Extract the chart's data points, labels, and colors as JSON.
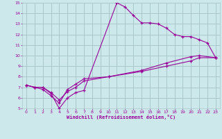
{
  "xlabel": "Windchill (Refroidissement éolien,°C)",
  "xlim": [
    -0.5,
    23.5
  ],
  "ylim": [
    5,
    15
  ],
  "xticks": [
    0,
    1,
    2,
    3,
    4,
    5,
    6,
    7,
    8,
    9,
    10,
    11,
    12,
    13,
    14,
    15,
    16,
    17,
    18,
    19,
    20,
    21,
    22,
    23
  ],
  "yticks": [
    5,
    6,
    7,
    8,
    9,
    10,
    11,
    12,
    13,
    14,
    15
  ],
  "bg_color": "#cde8ea",
  "grid_color": "#a8c8cc",
  "line_color": "#990099",
  "line1_x": [
    0,
    1,
    2,
    3,
    4,
    5,
    6,
    7,
    11,
    12,
    13,
    14,
    15,
    16,
    17,
    18,
    19,
    20,
    21,
    22,
    23
  ],
  "line1_y": [
    7.2,
    7.0,
    7.0,
    6.4,
    5.0,
    6.0,
    6.5,
    6.7,
    15.0,
    14.6,
    13.8,
    13.1,
    13.1,
    13.0,
    12.6,
    12.0,
    11.8,
    11.8,
    11.5,
    11.2,
    9.8
  ],
  "line2_x": [
    0,
    1,
    2,
    3,
    4,
    5,
    6,
    7,
    10,
    14,
    17,
    20,
    21,
    23
  ],
  "line2_y": [
    7.2,
    7.0,
    7.0,
    6.5,
    5.8,
    6.6,
    7.0,
    7.6,
    8.0,
    8.6,
    9.3,
    9.9,
    10.0,
    9.8
  ],
  "line3_x": [
    0,
    1,
    2,
    3,
    4,
    5,
    6,
    7,
    10,
    14,
    17,
    20,
    21,
    23
  ],
  "line3_y": [
    7.2,
    7.0,
    6.8,
    6.2,
    5.5,
    6.8,
    7.3,
    7.8,
    8.0,
    8.5,
    9.0,
    9.5,
    9.8,
    9.8
  ]
}
